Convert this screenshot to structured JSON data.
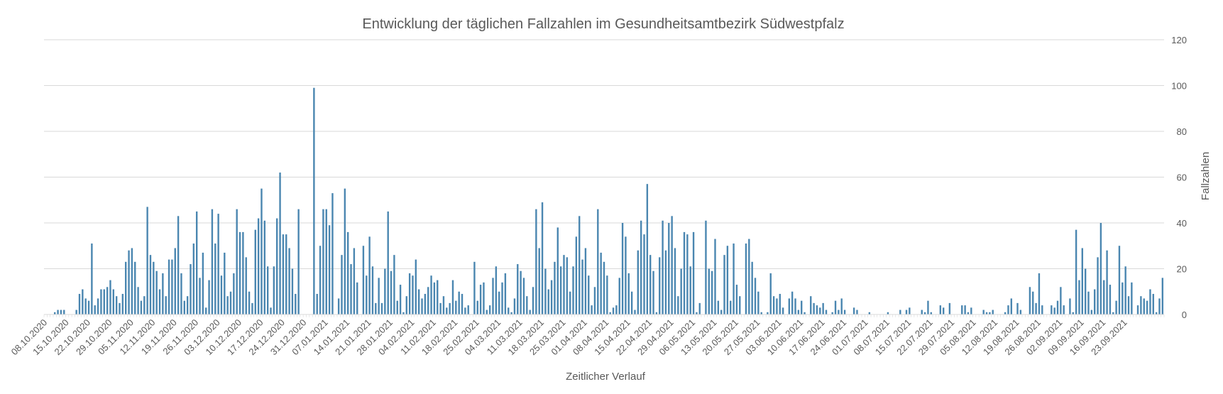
{
  "chart_data": {
    "type": "bar",
    "title": "Entwicklung der täglichen Fallzahlen im Gesundheitsamtbezirk Südwestpfalz",
    "xlabel": "Zeitlicher Verlauf",
    "ylabel": "Fallzahlen",
    "ylim": [
      0,
      120
    ],
    "yticks": [
      0,
      20,
      40,
      60,
      80,
      100,
      120
    ],
    "y_axis_side": "right",
    "grid": true,
    "bar_color": "#4a86b0",
    "x_start": "08.10.2020",
    "x_end": "30.09.2021",
    "x_tick_labels": [
      "08.10.2020",
      "15.10.2020",
      "22.10.2020",
      "29.10.2020",
      "05.11.2020",
      "12.11.2020",
      "19.11.2020",
      "26.11.2020",
      "03.12.2020",
      "10.12.2020",
      "17.12.2020",
      "24.12.2020",
      "31.12.2020",
      "07.01.2021",
      "14.01.2021",
      "21.01.2021",
      "28.01.2021",
      "04.02.2021",
      "11.02.2021",
      "18.02.2021",
      "25.02.2021",
      "04.03.2021",
      "11.03.2021",
      "18.03.2021",
      "25.03.2021",
      "01.04.2021",
      "08.04.2021",
      "15.04.2021",
      "22.04.2021",
      "29.04.2021",
      "06.05.2021",
      "13.05.2021",
      "20.05.2021",
      "27.05.2021",
      "03.06.2021",
      "10.06.2021",
      "17.06.2021",
      "24.06.2021",
      "01.07.2021",
      "08.07.2021",
      "15.07.2021",
      "22.07.2021",
      "29.07.2021",
      "05.08.2021",
      "12.08.2021",
      "19.08.2021",
      "26.08.2021",
      "02.09.2021",
      "09.09.2021",
      "16.09.2021",
      "23.09.2021"
    ],
    "values": [
      0,
      0,
      0,
      1,
      2,
      2,
      2,
      0,
      0,
      0,
      2,
      9,
      11,
      7,
      6,
      31,
      4,
      7,
      11,
      11,
      12,
      15,
      11,
      8,
      5,
      9,
      23,
      28,
      29,
      23,
      12,
      6,
      8,
      47,
      26,
      23,
      19,
      11,
      18,
      8,
      24,
      24,
      29,
      43,
      18,
      6,
      8,
      22,
      31,
      45,
      16,
      27,
      3,
      15,
      46,
      31,
      44,
      17,
      27,
      8,
      10,
      18,
      46,
      36,
      36,
      25,
      10,
      5,
      37,
      42,
      55,
      41,
      21,
      3,
      21,
      42,
      62,
      35,
      35,
      29,
      20,
      9,
      46,
      0,
      0,
      0,
      0,
      99,
      9,
      30,
      46,
      46,
      39,
      53,
      0,
      7,
      26,
      55,
      36,
      22,
      29,
      14,
      0,
      30,
      17,
      34,
      21,
      5,
      16,
      5,
      20,
      45,
      19,
      26,
      6,
      13,
      1,
      8,
      18,
      17,
      24,
      11,
      7,
      9,
      12,
      17,
      14,
      15,
      5,
      8,
      3,
      5,
      15,
      6,
      10,
      9,
      3,
      4,
      0,
      23,
      6,
      13,
      14,
      2,
      4,
      16,
      21,
      10,
      14,
      18,
      3,
      1,
      7,
      22,
      19,
      16,
      8,
      2,
      12,
      46,
      29,
      49,
      20,
      11,
      15,
      23,
      38,
      21,
      26,
      25,
      10,
      21,
      34,
      43,
      24,
      29,
      17,
      4,
      12,
      46,
      27,
      23,
      17,
      1,
      3,
      4,
      16,
      40,
      34,
      18,
      10,
      2,
      28,
      41,
      35,
      57,
      26,
      19,
      1,
      25,
      41,
      28,
      40,
      43,
      29,
      8,
      20,
      36,
      35,
      21,
      36,
      1,
      5,
      0,
      41,
      20,
      19,
      33,
      6,
      2,
      26,
      30,
      6,
      31,
      13,
      8,
      0,
      31,
      33,
      23,
      16,
      10,
      1,
      0,
      1,
      18,
      8,
      7,
      9,
      3,
      0,
      7,
      10,
      7,
      2,
      6,
      1,
      0,
      8,
      5,
      4,
      3,
      5,
      2,
      0,
      1,
      6,
      2,
      7,
      2,
      0,
      0,
      3,
      2,
      0,
      0,
      0,
      1,
      0,
      0,
      0,
      0,
      0,
      1,
      0,
      0,
      0,
      2,
      0,
      2,
      3,
      0,
      0,
      0,
      2,
      1,
      6,
      1,
      0,
      0,
      4,
      3,
      0,
      5,
      0,
      0,
      0,
      4,
      4,
      1,
      3,
      0,
      0,
      0,
      2,
      1,
      1,
      2,
      0,
      0,
      0,
      1,
      4,
      7,
      0,
      5,
      2,
      0,
      0,
      12,
      10,
      5,
      18,
      4,
      0,
      0,
      4,
      3,
      6,
      12,
      4,
      0,
      7,
      1,
      37,
      15,
      29,
      20,
      10,
      2,
      11,
      25,
      40,
      15,
      28,
      13,
      1,
      6,
      30,
      14,
      21,
      8,
      14,
      0,
      4,
      8,
      7,
      6,
      11,
      9,
      1,
      7,
      16
    ]
  }
}
